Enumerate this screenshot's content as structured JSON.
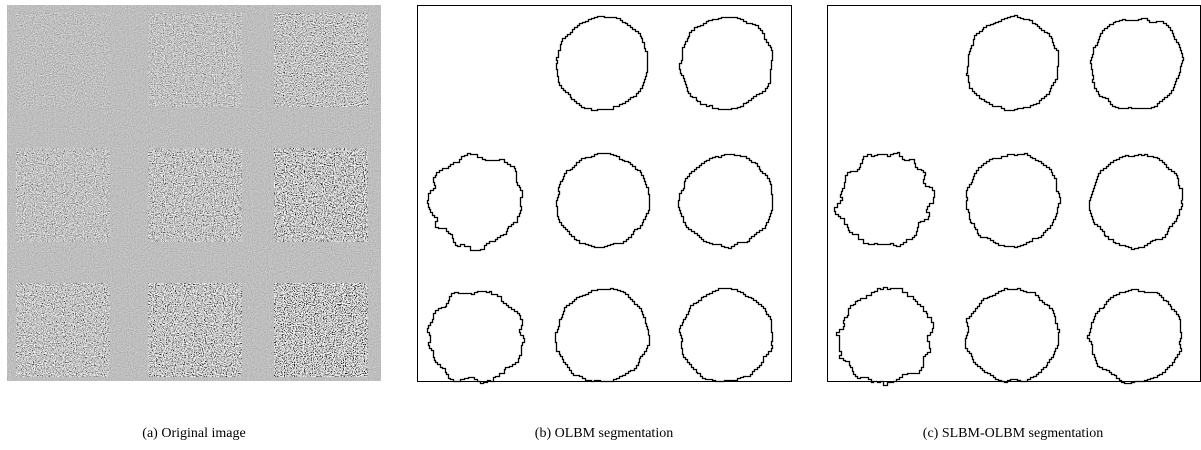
{
  "figure": {
    "panels": [
      {
        "caption": "(a) Original image"
      },
      {
        "caption": "(b) OLBM segmentation"
      },
      {
        "caption": "(c) SLBM-OLBM segmentation"
      }
    ]
  }
}
